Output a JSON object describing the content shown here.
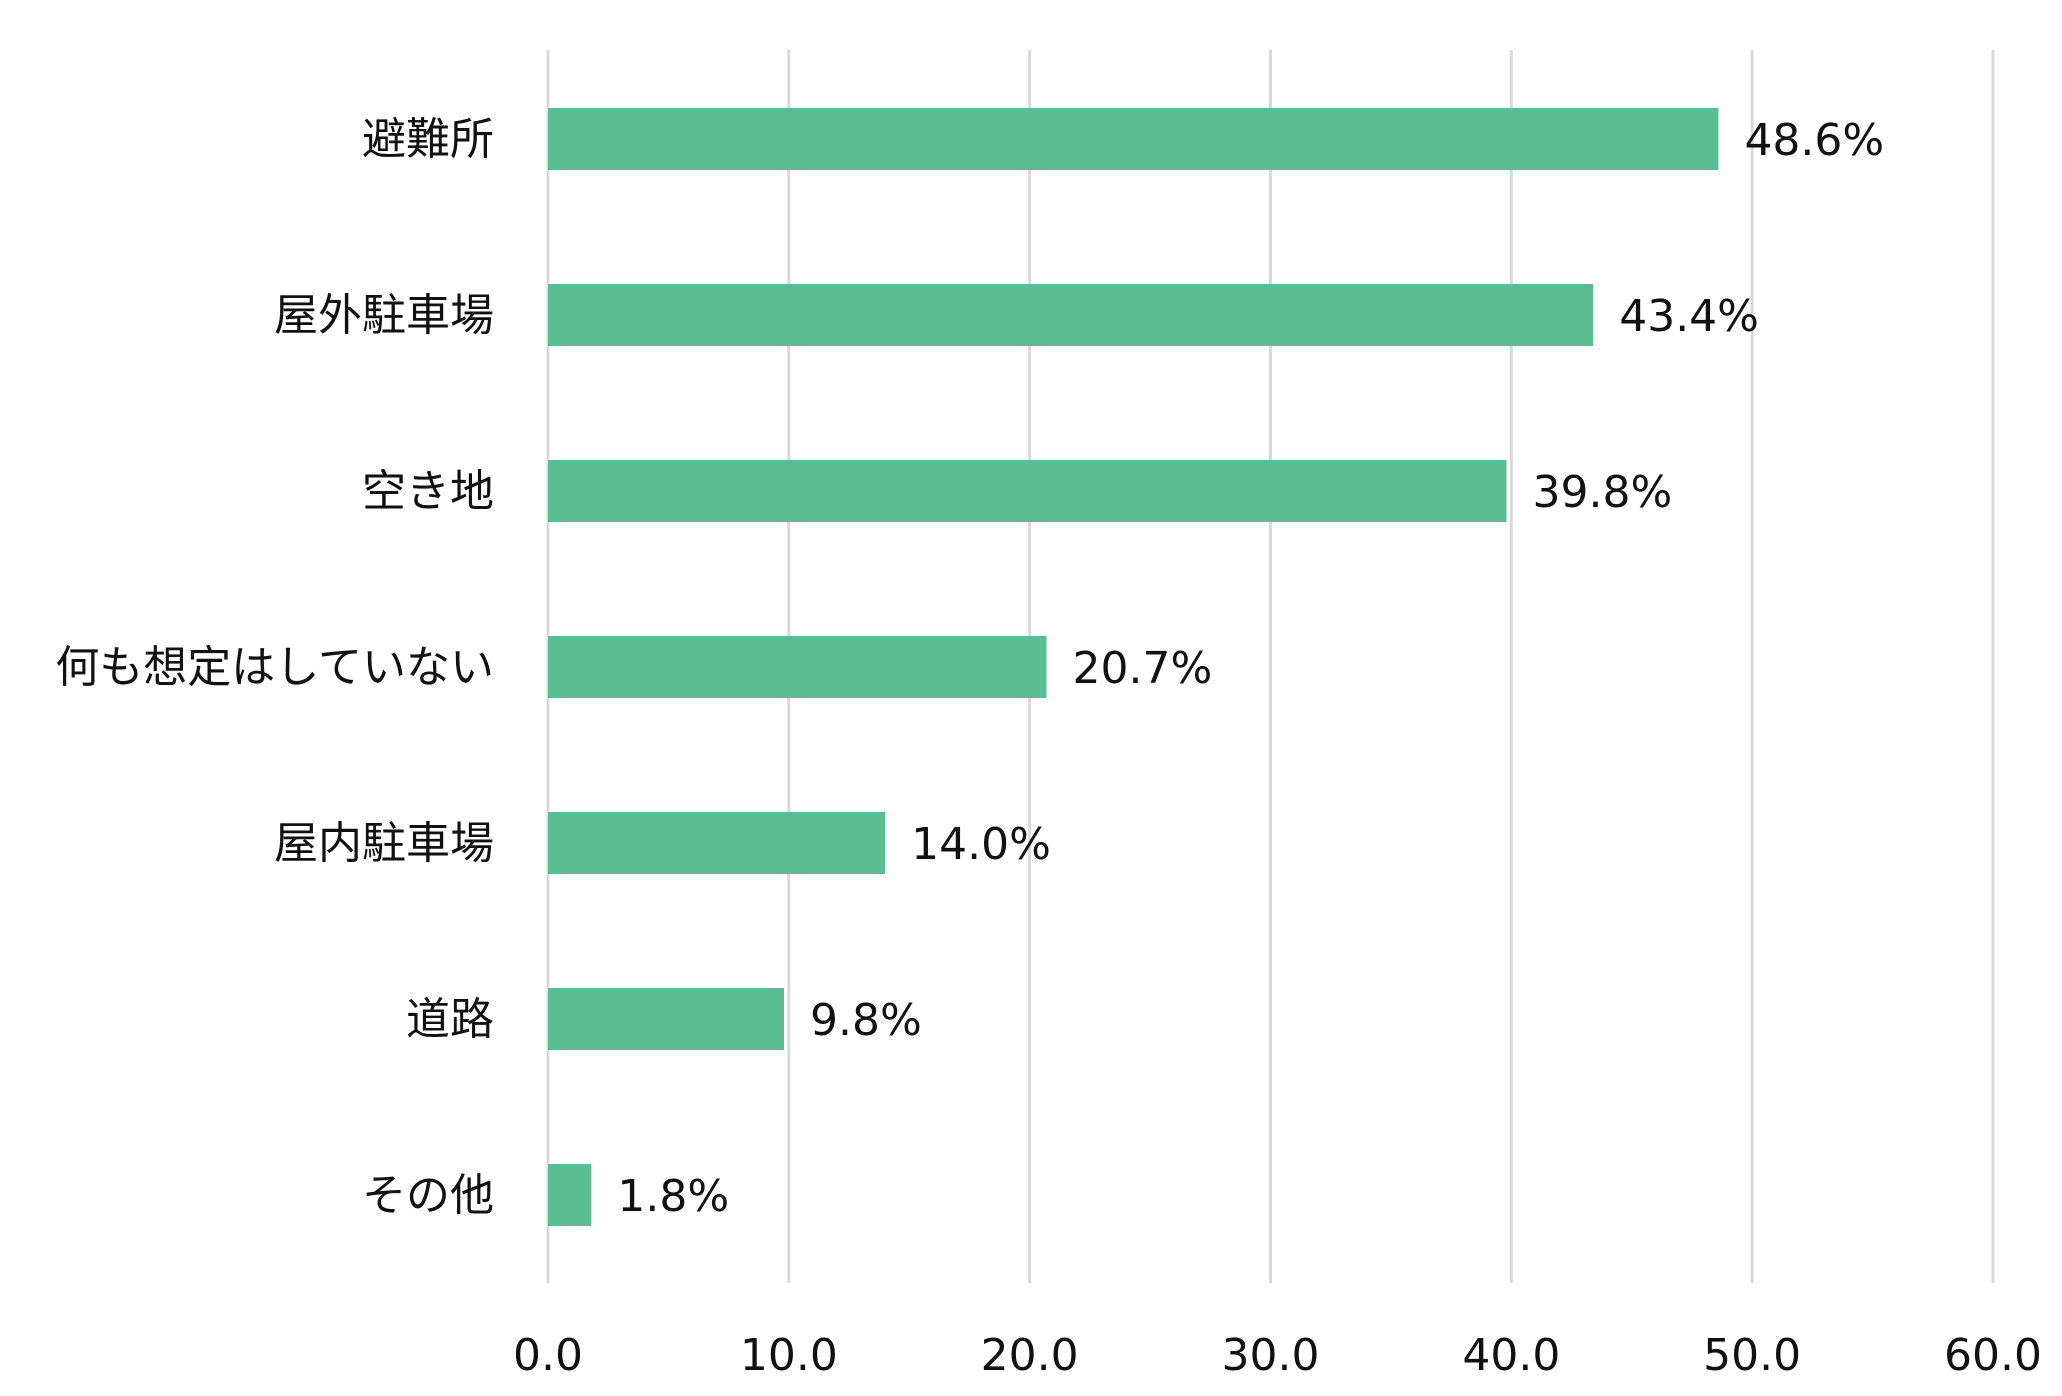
{
  "chart_data": {
    "type": "bar",
    "orientation": "horizontal",
    "categories": [
      "避難所",
      "屋外駐車場",
      "空き地",
      "何も想定はしていない",
      "屋内駐車場",
      "道路",
      "その他"
    ],
    "values": [
      48.6,
      43.4,
      39.8,
      20.7,
      14.0,
      9.8,
      1.8
    ],
    "value_labels": [
      "48.6%",
      "43.4%",
      "39.8%",
      "20.7%",
      "14.0%",
      "9.8%",
      "1.8%"
    ],
    "title": "",
    "xlabel": "",
    "ylabel": "",
    "xlim": [
      0,
      60
    ],
    "xticks": [
      0,
      10,
      20,
      30,
      40,
      50,
      60
    ],
    "xtick_labels": [
      "0.0",
      "10.0",
      "20.0",
      "30.0",
      "40.0",
      "50.0",
      "60.0"
    ],
    "grid": "vertical",
    "legend": "none",
    "colors": {
      "bar": "#5dbd92",
      "grid": "#d9d9d9",
      "text": "#111111"
    }
  }
}
